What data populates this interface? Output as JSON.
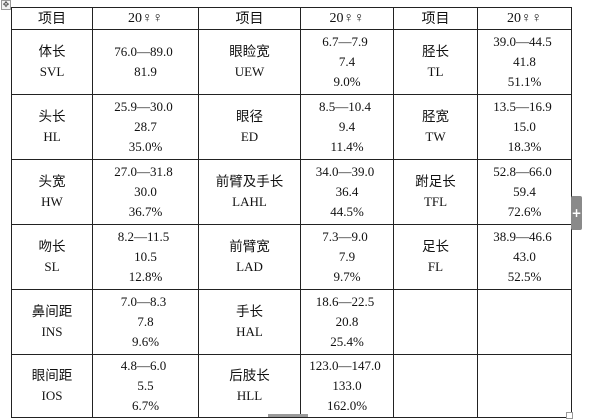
{
  "table_handle_symbol": "✥",
  "side_button_symbol": "+",
  "header": {
    "col1": "项目",
    "col2": "20♀♀",
    "col3": "项目",
    "col4": "20♀♀",
    "col5": "项目",
    "col6": "20♀♀"
  },
  "rows": [
    {
      "a": {
        "cn": "体长",
        "en": "SVL",
        "range": "76.0—89.0",
        "mean": "81.9",
        "pct": ""
      },
      "b": {
        "cn": "眼睑宽",
        "en": "UEW",
        "range": "6.7—7.9",
        "mean": "7.4",
        "pct": "9.0%"
      },
      "c": {
        "cn": "胫长",
        "en": "TL",
        "range": "39.0—44.5",
        "mean": "41.8",
        "pct": "51.1%"
      }
    },
    {
      "a": {
        "cn": "头长",
        "en": "HL",
        "range": "25.9—30.0",
        "mean": "28.7",
        "pct": "35.0%"
      },
      "b": {
        "cn": "眼径",
        "en": "ED",
        "range": "8.5—10.4",
        "mean": "9.4",
        "pct": "11.4%"
      },
      "c": {
        "cn": "胫宽",
        "en": "TW",
        "range": "13.5—16.9",
        "mean": "15.0",
        "pct": "18.3%"
      }
    },
    {
      "a": {
        "cn": "头宽",
        "en": "HW",
        "range": "27.0—31.8",
        "mean": "30.0",
        "pct": "36.7%"
      },
      "b": {
        "cn": "前臂及手长",
        "en": "LAHL",
        "range": "34.0—39.0",
        "mean": "36.4",
        "pct": "44.5%"
      },
      "c": {
        "cn": "跗足长",
        "en": "TFL",
        "range": "52.8—66.0",
        "mean": "59.4",
        "pct": "72.6%"
      }
    },
    {
      "a": {
        "cn": "吻长",
        "en": "SL",
        "range": "8.2—11.5",
        "mean": "10.5",
        "pct": "12.8%"
      },
      "b": {
        "cn": "前臂宽",
        "en": "LAD",
        "range": "7.3—9.0",
        "mean": "7.9",
        "pct": "9.7%"
      },
      "c": {
        "cn": "足长",
        "en": "FL",
        "range": "38.9—46.6",
        "mean": "43.0",
        "pct": "52.5%"
      }
    },
    {
      "a": {
        "cn": "鼻间距",
        "en": "INS",
        "range": "7.0—8.3",
        "mean": "7.8",
        "pct": "9.6%"
      },
      "b": {
        "cn": "手长",
        "en": "HAL",
        "range": "18.6—22.5",
        "mean": "20.8",
        "pct": "25.4%"
      },
      "c": {
        "cn": "",
        "en": "",
        "range": "",
        "mean": "",
        "pct": ""
      }
    },
    {
      "a": {
        "cn": "眼间距",
        "en": "IOS",
        "range": "4.8—6.0",
        "mean": "5.5",
        "pct": "6.7%"
      },
      "b": {
        "cn": "后肢长",
        "en": "HLL",
        "range": "123.0—147.0",
        "mean": "133.0",
        "pct": "162.0%"
      },
      "c": {
        "cn": "",
        "en": "",
        "range": "",
        "mean": "",
        "pct": ""
      }
    }
  ]
}
